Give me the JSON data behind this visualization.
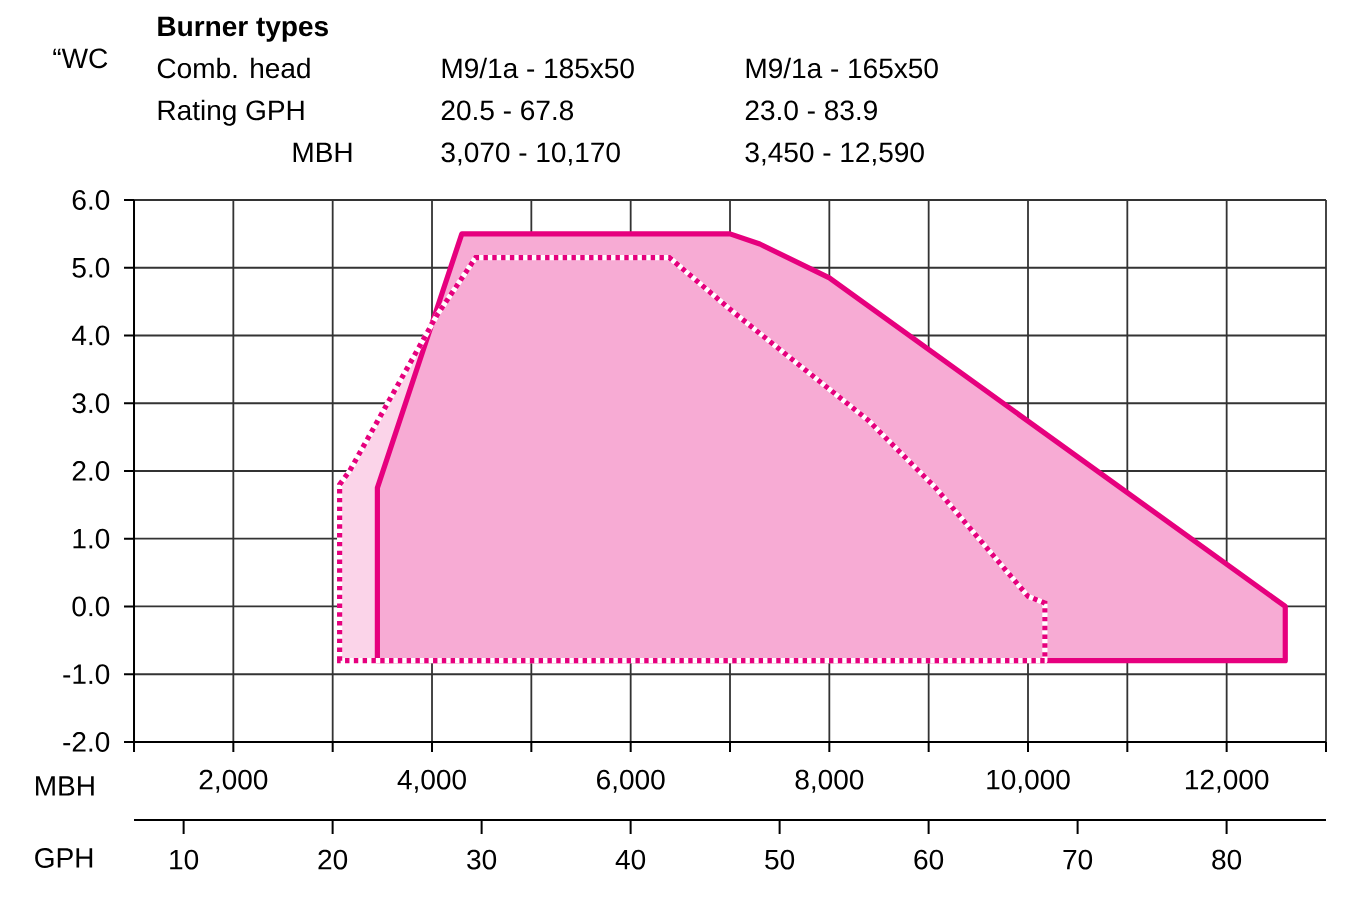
{
  "chart_data": {
    "type": "area",
    "ylabel": "“WC",
    "xlabel": "MBH",
    "x2label": "GPH",
    "annotations": [
      "Burner types",
      "Comb. head",
      "M9/1a - 185x50",
      "M9/1a - 165x50",
      "Rating GPH",
      "20.5 - 67.8",
      "23.0 - 83.9",
      "MBH",
      "3,070 - 10,170",
      "3,450 - 12,590"
    ],
    "series": [
      {
        "color": "#e6007e",
        "line_style": "dotted",
        "x": [
          3070,
          3070,
          3170,
          4050,
          4440,
          6390,
          7030,
          7750,
          8390,
          9070,
          10000,
          10170,
          10170
        ],
        "values": [
          -0.8,
          1.8,
          2.0,
          4.3,
          5.15,
          5.15,
          4.35,
          3.5,
          2.75,
          1.75,
          0.15,
          0.05,
          -0.8
        ]
      },
      {
        "color": "#e6007e",
        "line_style": "solid",
        "x": [
          3450,
          3450,
          4300,
          7000,
          7300,
          8000,
          12590,
          12590
        ],
        "values": [
          -0.8,
          1.75,
          5.5,
          5.5,
          5.35,
          4.85,
          0.0,
          -0.8
        ]
      }
    ],
    "xlim": [
      1000,
      13000
    ],
    "xticks": [
      {
        "value": 1000,
        "label": null
      },
      {
        "value": 2000,
        "label": "2,000"
      },
      {
        "value": 3000,
        "label": null
      },
      {
        "value": 4000,
        "label": "4,000"
      },
      {
        "value": 5000,
        "label": null
      },
      {
        "value": 6000,
        "label": "6,000"
      },
      {
        "value": 7000,
        "label": null
      },
      {
        "value": 8000,
        "label": "8,000"
      },
      {
        "value": 9000,
        "label": null
      },
      {
        "value": 10000,
        "label": "10,000"
      },
      {
        "value": 11000,
        "label": null
      },
      {
        "value": 12000,
        "label": "12,000"
      },
      {
        "value": 13000,
        "label": null
      }
    ],
    "x2lim": [
      6.67,
      86.67
    ],
    "x2ticks": [
      10,
      20,
      30,
      40,
      50,
      60,
      70,
      80
    ],
    "ylim": [
      -2,
      6
    ],
    "yticks": [
      {
        "value": -2,
        "label": "-2.0"
      },
      {
        "value": -1,
        "label": "-1.0"
      },
      {
        "value": 0,
        "label": "0.0"
      },
      {
        "value": 1,
        "label": "1.0"
      },
      {
        "value": 2,
        "label": "2.0"
      },
      {
        "value": 3,
        "label": "3.0"
      },
      {
        "value": 4,
        "label": "4.0"
      },
      {
        "value": 5,
        "label": "5.0"
      },
      {
        "value": 6,
        "label": "6.0"
      }
    ],
    "grid": true
  }
}
